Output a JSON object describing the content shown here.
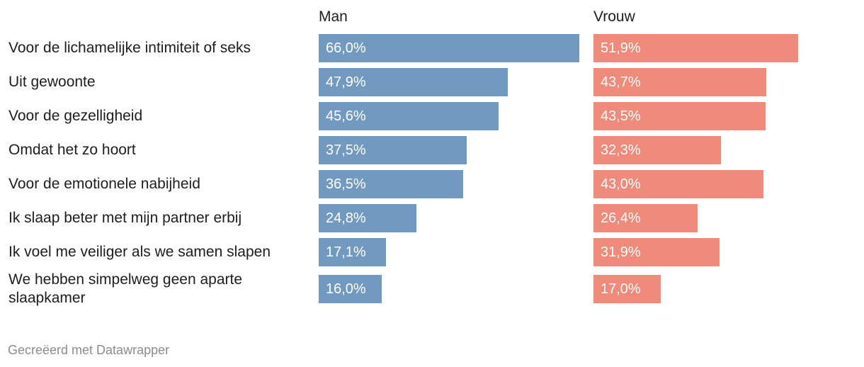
{
  "chart_data": {
    "type": "bar",
    "orientation": "horizontal",
    "layout": "split-by-series",
    "categories": [
      "Voor de lichamelijke intimiteit of seks",
      "Uit gewoonte",
      "Voor de gezelligheid",
      "Omdat het zo hoort",
      "Voor de emotionele nabijheid",
      "Ik slaap beter met mijn partner erbij",
      "Ik voel me veiliger als we samen slapen",
      "We hebben simpelweg geen aparte slaapkamer"
    ],
    "series": [
      {
        "name": "Man",
        "color": "#7299c0",
        "values": [
          66.0,
          47.9,
          45.6,
          37.5,
          36.5,
          24.8,
          17.1,
          16.0
        ],
        "labels": [
          "66,0%",
          "47,9%",
          "45,6%",
          "37,5%",
          "36,5%",
          "24,8%",
          "17,1%",
          "16,0%"
        ]
      },
      {
        "name": "Vrouw",
        "color": "#f08a7b",
        "values": [
          51.9,
          43.7,
          43.5,
          32.3,
          43.0,
          26.4,
          31.9,
          17.0
        ],
        "labels": [
          "51,9%",
          "43,7%",
          "43,5%",
          "32,3%",
          "43,0%",
          "26,4%",
          "31,9%",
          "17,0%"
        ]
      }
    ],
    "xlim": [
      0,
      66.0
    ],
    "unit": "%",
    "grid": false,
    "legend": "none"
  },
  "footer": {
    "credit": "Gecreëerd met Datawrapper"
  }
}
